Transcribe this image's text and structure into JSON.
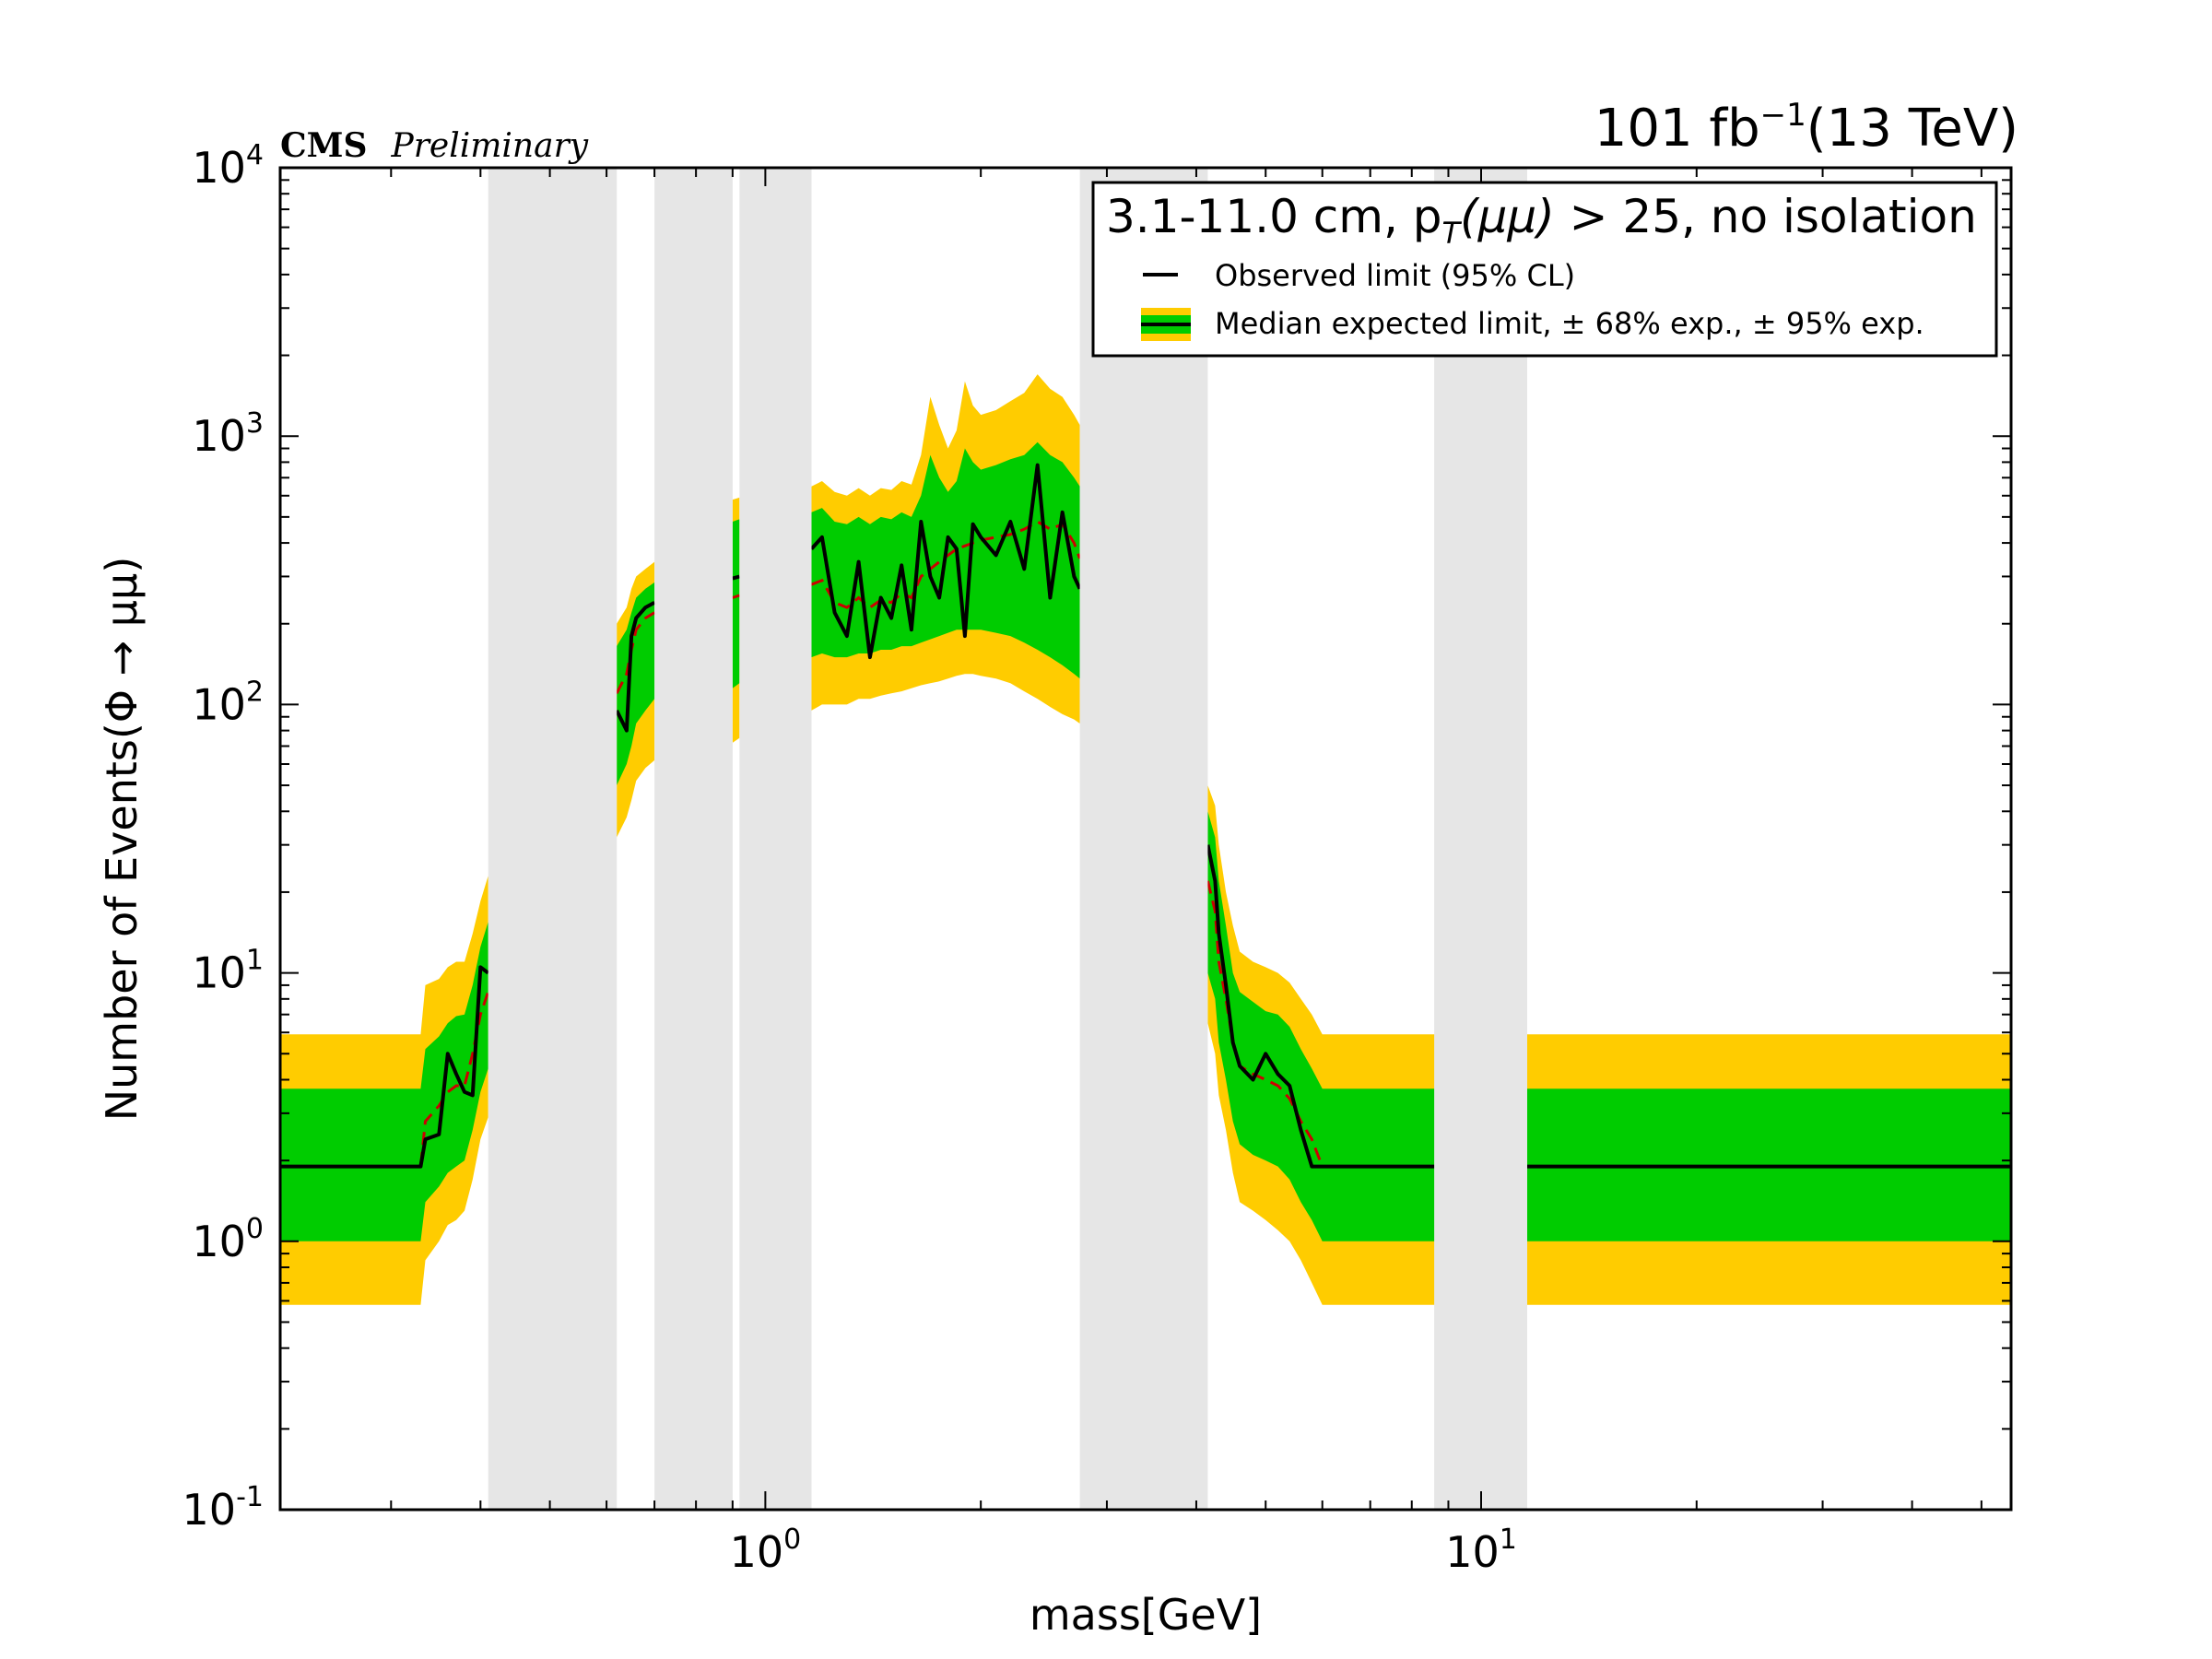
{
  "chart_data": {
    "type": "line",
    "xscale": "log",
    "yscale": "log",
    "xlim": [
      0.21,
      55
    ],
    "ylim": [
      0.1,
      10000
    ],
    "xlabel": "mass[GeV]",
    "ylabel": "Number of Events(Φ → μμ)",
    "x_ticks": [
      {
        "value": 1,
        "base": "10",
        "exp": "0"
      },
      {
        "value": 10,
        "base": "10",
        "exp": "1"
      }
    ],
    "y_ticks": [
      {
        "value": 0.1,
        "base": "10",
        "exp": "-1"
      },
      {
        "value": 1,
        "base": "10",
        "exp": "0"
      },
      {
        "value": 10,
        "base": "10",
        "exp": "1"
      },
      {
        "value": 100,
        "base": "10",
        "exp": "2"
      },
      {
        "value": 1000,
        "base": "10",
        "exp": "3"
      },
      {
        "value": 10000,
        "base": "10",
        "exp": "4"
      }
    ],
    "grid": false,
    "legend_position": "top-right",
    "experiment": "CMS",
    "status": "Preliminary",
    "lumi": {
      "value": "101 fb",
      "exp": "−1",
      "energy": "(13 TeV)"
    },
    "legend": {
      "title_pre": "3.1-11.0 cm, p",
      "title_sub": "T",
      "title_mid": "(μμ)",
      "title_post": " > 25, no isolation",
      "observed_label": "Observed limit (95% CL)",
      "expected_label": "Median expected limit, ± 68% exp., ± 95% exp."
    },
    "colors": {
      "band_95": "#ffcc00",
      "band_68": "#00cc00",
      "observed": "#000000",
      "expected": "#cc0000",
      "excluded": "#e6e6e6"
    },
    "excluded_regions": [
      [
        0.41,
        0.62
      ],
      [
        0.7,
        0.9
      ],
      [
        0.92,
        1.16
      ],
      [
        2.75,
        4.15
      ],
      [
        8.6,
        11.6
      ]
    ],
    "segments": [
      {
        "x": [
          0.21,
          0.33,
          0.335,
          0.35,
          0.36,
          0.37,
          0.38,
          0.39,
          0.4,
          0.41
        ],
        "observed": [
          1.9,
          1.9,
          2.4,
          2.5,
          5.0,
          4.2,
          3.6,
          3.5,
          10.5,
          10.0
        ],
        "expected": [
          1.9,
          1.9,
          2.8,
          3.2,
          3.6,
          3.8,
          3.8,
          5.0,
          7.0,
          8.5
        ],
        "band68_low": [
          1.0,
          1.0,
          1.4,
          1.6,
          1.8,
          1.9,
          2.0,
          2.6,
          3.6,
          4.4
        ],
        "band68_high": [
          3.7,
          3.7,
          5.2,
          5.8,
          6.5,
          6.9,
          7.0,
          9.0,
          12.5,
          15.5
        ],
        "band95_low": [
          0.58,
          0.58,
          0.85,
          1.0,
          1.15,
          1.2,
          1.3,
          1.7,
          2.4,
          2.9
        ],
        "band95_high": [
          5.9,
          5.9,
          9.0,
          9.5,
          10.5,
          11.0,
          11.0,
          14.0,
          18.5,
          23.0
        ]
      },
      {
        "x": [
          0.62,
          0.64,
          0.65,
          0.66,
          0.68,
          0.7
        ],
        "observed": [
          95,
          80,
          180,
          210,
          230,
          240
        ],
        "expected": [
          110,
          130,
          160,
          190,
          210,
          220
        ],
        "band68_low": [
          50,
          60,
          70,
          85,
          95,
          105
        ],
        "band68_high": [
          165,
          190,
          220,
          250,
          270,
          285
        ],
        "band95_low": [
          32,
          38,
          44,
          52,
          58,
          62
        ],
        "band95_high": [
          200,
          230,
          270,
          300,
          320,
          340
        ]
      },
      {
        "x": [
          0.9,
          0.92
        ],
        "observed": [
          295,
          300
        ],
        "expected": [
          250,
          255
        ],
        "band68_low": [
          115,
          120
        ],
        "band68_high": [
          480,
          490
        ],
        "band95_low": [
          72,
          75
        ],
        "band95_high": [
          580,
          590
        ]
      },
      {
        "x": [
          1.16,
          1.2,
          1.25,
          1.3,
          1.35,
          1.4,
          1.45,
          1.5,
          1.55,
          1.6,
          1.65,
          1.7,
          1.75,
          1.8,
          1.85,
          1.9,
          1.95,
          2.0,
          2.1,
          2.2,
          2.3,
          2.4,
          2.5,
          2.6,
          2.7,
          2.75
        ],
        "observed": [
          380,
          420,
          220,
          180,
          340,
          150,
          250,
          210,
          330,
          190,
          480,
          300,
          250,
          420,
          380,
          180,
          470,
          420,
          360,
          480,
          320,
          780,
          250,
          520,
          300,
          270
        ],
        "expected": [
          280,
          290,
          240,
          230,
          250,
          230,
          245,
          240,
          260,
          250,
          300,
          320,
          340,
          360,
          380,
          390,
          400,
          410,
          420,
          430,
          450,
          480,
          450,
          470,
          400,
          350
        ],
        "band68_low": [
          150,
          155,
          150,
          150,
          155,
          155,
          160,
          160,
          165,
          165,
          170,
          175,
          180,
          185,
          190,
          190,
          190,
          190,
          185,
          180,
          170,
          160,
          150,
          140,
          130,
          125
        ],
        "band68_high": [
          520,
          540,
          480,
          470,
          500,
          470,
          500,
          490,
          520,
          500,
          600,
          850,
          700,
          620,
          680,
          900,
          800,
          750,
          780,
          820,
          850,
          950,
          850,
          800,
          700,
          650
        ],
        "band95_low": [
          95,
          100,
          100,
          100,
          105,
          105,
          108,
          110,
          112,
          115,
          118,
          120,
          122,
          125,
          128,
          130,
          130,
          128,
          125,
          120,
          112,
          105,
          98,
          92,
          88,
          85
        ],
        "band95_high": [
          650,
          680,
          620,
          600,
          640,
          600,
          640,
          630,
          680,
          660,
          850,
          1400,
          1100,
          900,
          1050,
          1600,
          1300,
          1200,
          1250,
          1350,
          1450,
          1700,
          1500,
          1400,
          1200,
          1100
        ]
      },
      {
        "x": [
          4.15,
          4.25,
          4.3,
          4.4,
          4.5,
          4.6,
          4.8,
          5.0,
          5.2,
          5.4,
          5.6,
          5.8,
          6.0,
          55
        ],
        "observed": [
          30,
          22,
          14,
          9,
          5.5,
          4.5,
          4.0,
          5.0,
          4.2,
          3.8,
          2.6,
          1.9,
          1.9,
          1.9
        ],
        "expected": [
          22,
          17,
          11,
          8,
          5.5,
          4.5,
          4.2,
          4.0,
          3.8,
          3.4,
          2.8,
          2.4,
          1.9,
          1.9
        ],
        "band68_low": [
          10,
          8,
          5.5,
          4.0,
          2.8,
          2.3,
          2.1,
          2.0,
          1.9,
          1.7,
          1.4,
          1.2,
          1.0,
          1.0
        ],
        "band68_high": [
          40,
          32,
          22,
          15,
          10,
          8.5,
          7.8,
          7.2,
          7.0,
          6.3,
          5.2,
          4.4,
          3.7,
          3.7
        ],
        "band95_low": [
          6.5,
          5.0,
          3.5,
          2.6,
          1.8,
          1.4,
          1.3,
          1.2,
          1.1,
          1.0,
          0.85,
          0.7,
          0.58,
          0.58
        ],
        "band95_high": [
          50,
          42,
          30,
          20,
          15,
          12,
          11,
          10.5,
          10,
          9.2,
          8.0,
          7.0,
          5.9,
          5.9
        ]
      }
    ]
  }
}
